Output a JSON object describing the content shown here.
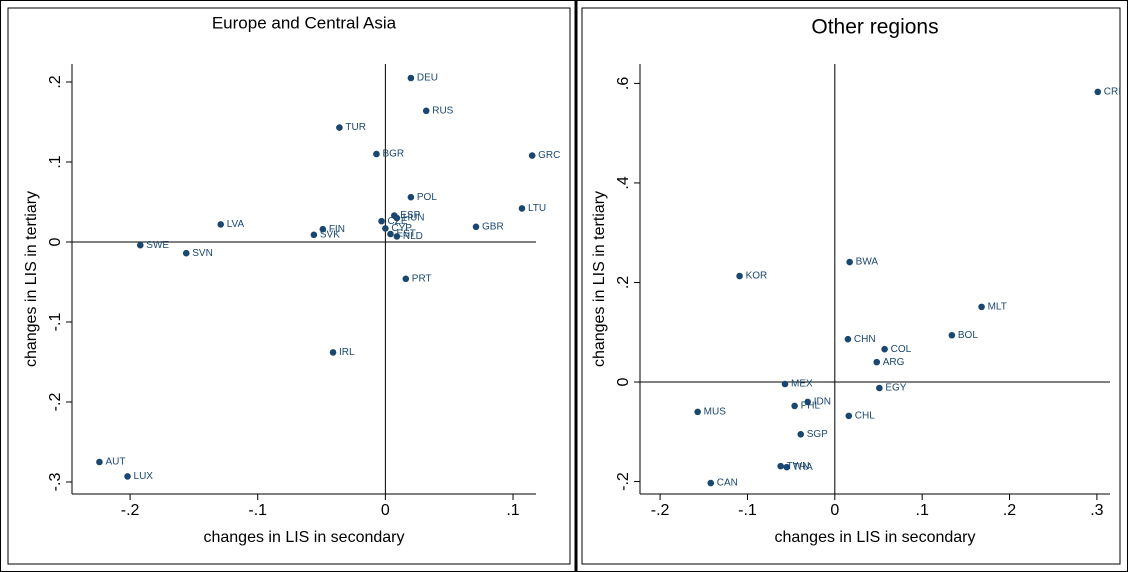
{
  "chart_data": [
    {
      "type": "scatter",
      "title": "Europe and Central Asia",
      "x_label": "changes in LIS in secondary",
      "y_label": "changes in LIS in tertiary",
      "color": "#1a476f",
      "labels": [
        "DEU",
        "RUS",
        "TUR",
        "BGR",
        "GRC",
        "POL",
        "LTU",
        "CZE",
        "ESP",
        "HUN",
        "GBR",
        "LVA",
        "FIN",
        "CYP",
        "SVK",
        "EST",
        "NLD",
        "SWE",
        "SVN",
        "PRT",
        "IRL",
        "AUT",
        "LUX"
      ],
      "x": [
        0.02,
        0.032,
        -0.036,
        -0.007,
        0.115,
        0.02,
        0.107,
        -0.003,
        0.007,
        0.009,
        0.071,
        -0.129,
        -0.049,
        0.0,
        -0.056,
        0.004,
        0.009,
        -0.192,
        -0.156,
        0.016,
        -0.041,
        -0.224,
        -0.202
      ],
      "y": [
        0.205,
        0.164,
        0.143,
        0.11,
        0.108,
        0.056,
        0.042,
        0.026,
        0.033,
        0.03,
        0.019,
        0.022,
        0.016,
        0.017,
        0.009,
        0.01,
        0.007,
        -0.004,
        -0.014,
        -0.046,
        -0.138,
        -0.275,
        -0.293
      ],
      "xlim": [
        -0.2455,
        0.118
      ],
      "ylim": [
        -0.315,
        0.2225
      ],
      "xticks": [
        {
          "value": -0.2,
          "label": "-.2"
        },
        {
          "value": -0.1,
          "label": "-.1"
        },
        0,
        {
          "value": 0.1,
          "label": ".1"
        }
      ],
      "yticks": [
        {
          "value": -0.3,
          "label": "-.3"
        },
        {
          "value": -0.2,
          "label": "-.2"
        },
        {
          "value": -0.1,
          "label": "-.1"
        },
        0,
        {
          "value": 0.1,
          "label": ".1"
        },
        {
          "value": 0.2,
          "label": ".2"
        }
      ]
    },
    {
      "type": "scatter",
      "title": "Other regions",
      "x_label": "changes in LIS in secondary",
      "y_label": "changes in LIS in tertiary",
      "color": "#1a476f",
      "labels": [
        "CRI",
        "BWA",
        "KOR",
        "MLT",
        "BOL",
        "CHN",
        "COL",
        "ARG",
        "MEX",
        "EGY",
        "IDN",
        "PHL",
        "MUS",
        "CHL",
        "SGP",
        "TWN",
        "THA",
        "CAN"
      ],
      "x": [
        0.301,
        0.017,
        -0.109,
        0.168,
        0.134,
        0.015,
        0.057,
        0.048,
        -0.057,
        0.051,
        -0.031,
        -0.046,
        -0.157,
        0.016,
        -0.039,
        -0.062,
        -0.055,
        -0.142
      ],
      "y": [
        0.583,
        0.241,
        0.213,
        0.151,
        0.094,
        0.086,
        0.066,
        0.04,
        -0.004,
        -0.012,
        -0.04,
        -0.048,
        -0.06,
        -0.068,
        -0.105,
        -0.169,
        -0.171,
        -0.203
      ],
      "xlim": [
        -0.223,
        0.315
      ],
      "ylim": [
        -0.225,
        0.639
      ],
      "xticks": [
        {
          "value": -0.2,
          "label": "-.2"
        },
        {
          "value": -0.1,
          "label": "-.1"
        },
        0,
        {
          "value": 0.1,
          "label": ".1"
        },
        {
          "value": 0.2,
          "label": ".2"
        },
        {
          "value": 0.3,
          "label": ".3"
        }
      ],
      "yticks": [
        {
          "value": -0.2,
          "label": "-.2"
        },
        0,
        {
          "value": 0.2,
          "label": ".2"
        },
        {
          "value": 0.4,
          "label": ".4"
        },
        {
          "value": 0.6,
          "label": ".6"
        }
      ]
    }
  ]
}
